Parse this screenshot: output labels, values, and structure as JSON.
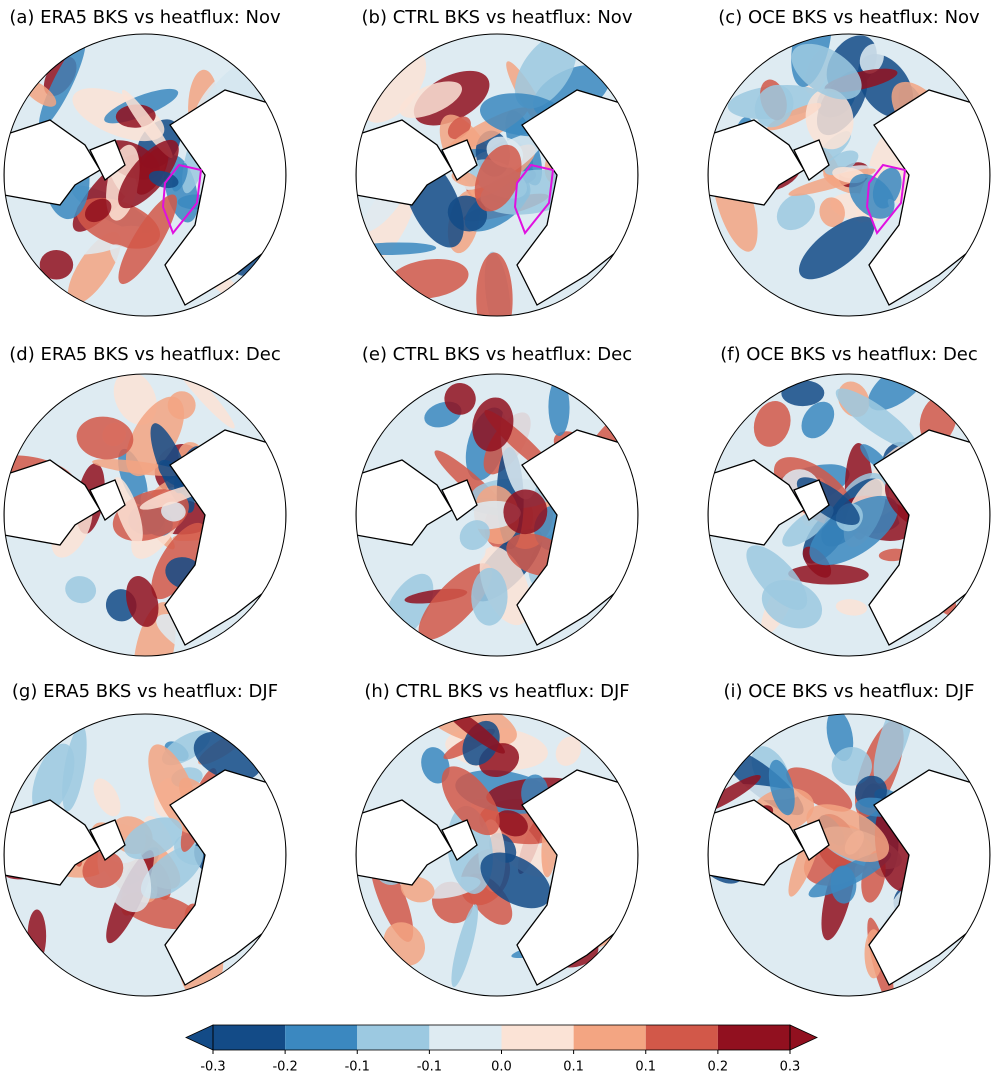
{
  "panels": [
    {
      "title": "(a) ERA5 BKS vs heatflux: Nov"
    },
    {
      "title": "(b) CTRL BKS vs heatflux: Nov"
    },
    {
      "title": "(c) OCE BKS vs heatflux: Nov"
    },
    {
      "title": "(d) ERA5 BKS vs heatflux: Dec"
    },
    {
      "title": "(e) CTRL BKS vs heatflux: Dec"
    },
    {
      "title": "(f) OCE BKS vs heatflux: Dec"
    },
    {
      "title": "(g) ERA5 BKS vs heatflux: DJF"
    },
    {
      "title": "(h) CTRL BKS vs heatflux: DJF"
    },
    {
      "title": "(i) OCE BKS vs heatflux: DJF"
    }
  ],
  "chart_data": {
    "type": "colorbar",
    "xlim": [
      -0.3,
      0.3
    ],
    "xticks": [
      -0.3,
      {
        "value": -0.225,
        "label": "-0.2"
      },
      {
        "value": -0.15,
        "label": "-0.1"
      },
      {
        "value": -0.075,
        "label": "-0.1"
      },
      {
        "value": 0,
        "label": "0.0"
      },
      {
        "value": 0.075,
        "label": "0.1"
      },
      {
        "value": 0.15,
        "label": "0.1"
      },
      {
        "value": 0.225,
        "label": "0.2"
      },
      0.3
    ],
    "colors": [
      "#134b87",
      "#3b88c0",
      "#9cc9e1",
      "#deebf2",
      "#fbe3d6",
      "#f3a582",
      "#d25849",
      "#91101f"
    ],
    "extend": "both"
  }
}
